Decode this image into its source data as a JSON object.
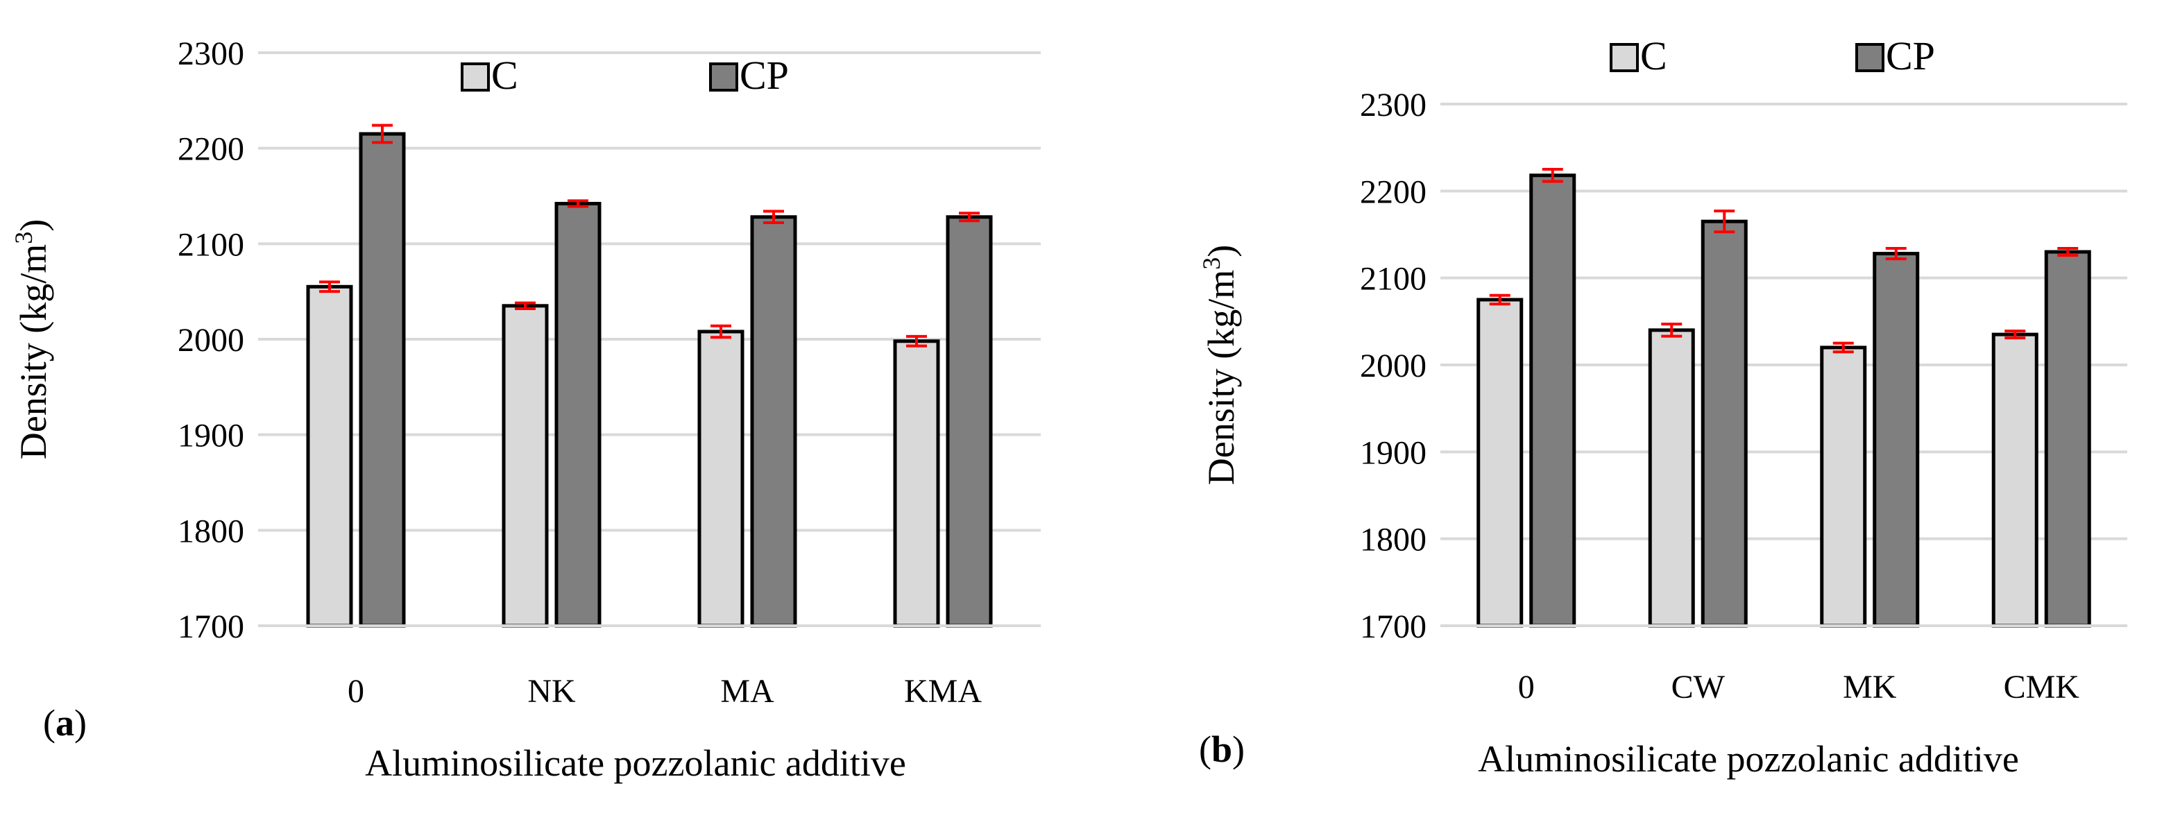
{
  "figure": {
    "panels": [
      {
        "label_open": "(",
        "label_letter": "a",
        "label_close": ")"
      },
      {
        "label_open": "(",
        "label_letter": "b",
        "label_close": ")"
      }
    ]
  },
  "colors": {
    "C": "#d9d9d9",
    "CP": "#7f7f7f",
    "outline": "#000000",
    "error_bar": "#ff0000",
    "grid": "#d9d9d9"
  },
  "chart_data": [
    {
      "type": "bar",
      "panel": "a",
      "title": "",
      "xlabel": "Aluminosilicate pozzolanic additive",
      "ylabel_main": "Density (kg/m",
      "ylabel_sup": "3",
      "ylabel_close": ")",
      "ylim": [
        1700,
        2300
      ],
      "yticks": [
        1700,
        1800,
        1900,
        2000,
        2100,
        2200,
        2300
      ],
      "grid": true,
      "legend_position": "top",
      "categories": [
        "0",
        "NK",
        "MA",
        "KMA"
      ],
      "series": [
        {
          "name": "C",
          "values": [
            2055,
            2035,
            2008,
            1998
          ],
          "errors": [
            5,
            3,
            6,
            5
          ]
        },
        {
          "name": "CP",
          "values": [
            2215,
            2142,
            2128,
            2128
          ],
          "errors": [
            9,
            3,
            6,
            4
          ]
        }
      ]
    },
    {
      "type": "bar",
      "panel": "b",
      "title": "",
      "xlabel": "Aluminosilicate pozzolanic additive",
      "ylabel_main": "Density (kg/m",
      "ylabel_sup": "3",
      "ylabel_close": ")",
      "ylim": [
        1700,
        2300
      ],
      "yticks": [
        1700,
        1800,
        1900,
        2000,
        2100,
        2200,
        2300
      ],
      "grid": true,
      "legend_position": "top",
      "categories": [
        "0",
        "CW",
        "MK",
        "CMK"
      ],
      "series": [
        {
          "name": "C",
          "values": [
            2075,
            2040,
            2020,
            2035
          ],
          "errors": [
            5,
            7,
            5,
            4
          ]
        },
        {
          "name": "CP",
          "values": [
            2218,
            2165,
            2128,
            2130
          ],
          "errors": [
            7,
            12,
            6,
            4
          ]
        }
      ]
    }
  ]
}
